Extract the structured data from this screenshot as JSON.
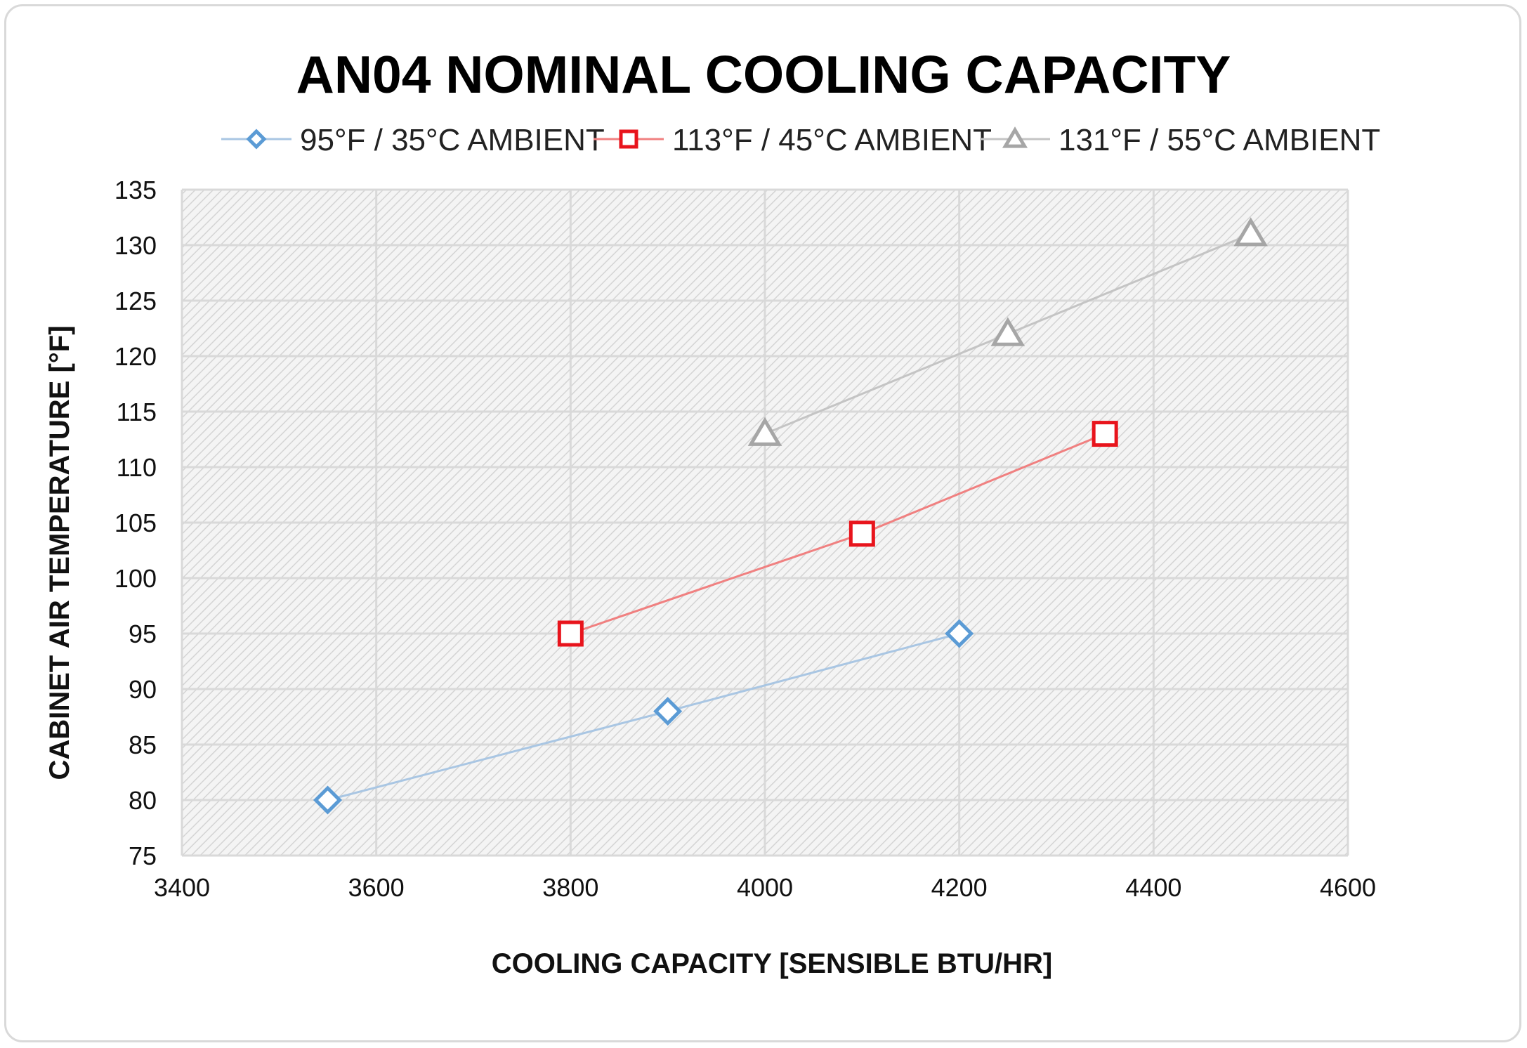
{
  "chart_data": {
    "type": "line",
    "title": "AN04 NOMINAL COOLING CAPACITY",
    "xlabel": "COOLING CAPACITY [SENSIBLE BTU/HR]",
    "ylabel": "CABINET AIR TEMPERATURE  [°F]",
    "xlim": [
      3400,
      4600
    ],
    "ylim": [
      75,
      135
    ],
    "xticks": [
      3400,
      3600,
      3800,
      4000,
      4200,
      4400,
      4600
    ],
    "yticks": [
      75,
      80,
      85,
      90,
      95,
      100,
      105,
      110,
      115,
      120,
      125,
      130,
      135
    ],
    "grid": true,
    "plot_background": "hatched light gray",
    "legend_position": "top",
    "series": [
      {
        "name": "95°F / 35°C AMBIENT",
        "marker": "diamond",
        "line_color": "#a9c6e3",
        "marker_color": "#5b9bd5",
        "x": [
          3550,
          3900,
          4200
        ],
        "y": [
          80,
          88,
          95
        ]
      },
      {
        "name": "113°F / 45°C AMBIENT",
        "marker": "square",
        "line_color": "#f08080",
        "marker_color": "#e8141c",
        "x": [
          3800,
          4100,
          4350
        ],
        "y": [
          95,
          104,
          113
        ]
      },
      {
        "name": "131°F / 55°C AMBIENT",
        "marker": "triangle",
        "line_color": "#c4c4c4",
        "marker_color": "#a6a6a6",
        "x": [
          4000,
          4250,
          4500
        ],
        "y": [
          113,
          122,
          131
        ]
      }
    ]
  }
}
